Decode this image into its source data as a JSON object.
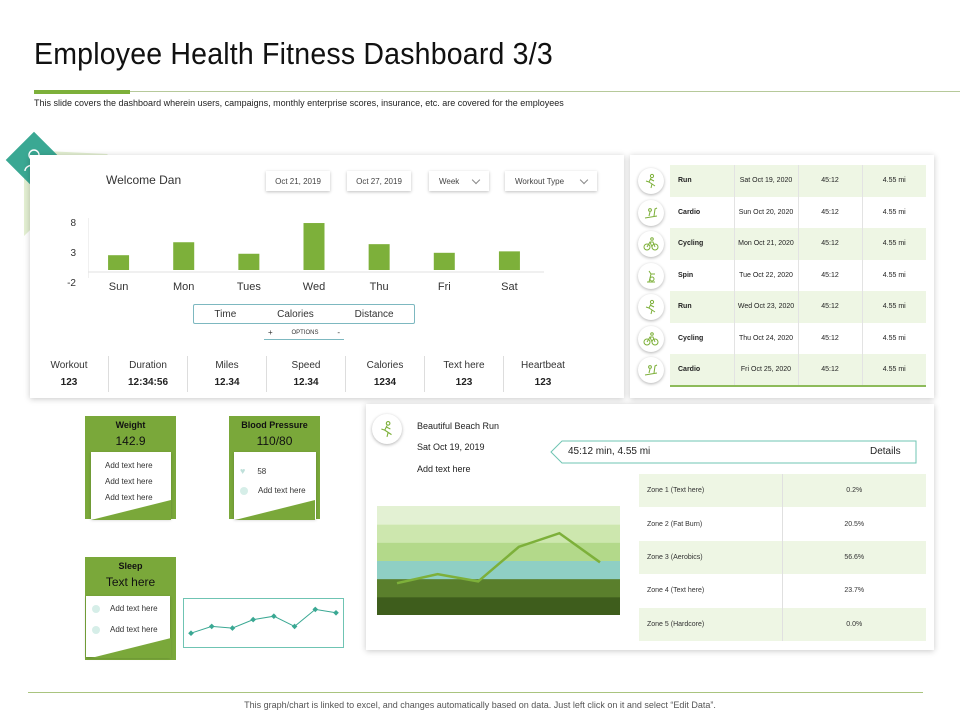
{
  "page": {
    "title": "Employee Health Fitness Dashboard 3/3",
    "subtitle": "This slide covers the dashboard wherein users, campaigns, monthly enterprise scores, insurance, etc. are covered for the employees",
    "footer": "This graph/chart is linked to excel, and changes automatically based on data. Just left click on it and select “Edit Data”."
  },
  "colors": {
    "accent": "#7db03a",
    "accent_dark": "#7aa83a",
    "teal": "#3aa893",
    "row_tint": "#eef6e4"
  },
  "welcome": {
    "greeting": "Welcome Dan",
    "date_from": "Oct 21, 2019",
    "date_to": "Oct 27, 2019",
    "period": "Week",
    "workout_type": "Workout Type"
  },
  "chart_data": [
    {
      "type": "bar",
      "categories": [
        "Sun",
        "Mon",
        "Tues",
        "Wed",
        "Thu",
        "Fri",
        "Sat"
      ],
      "values": [
        1.5,
        4.2,
        1.8,
        8.2,
        3.8,
        2.0,
        2.3
      ],
      "yticks": [
        "8",
        "3",
        "-2"
      ],
      "ylim": [
        -2,
        8
      ],
      "color": "#7db03a"
    },
    {
      "type": "line",
      "x": [
        1,
        2,
        3,
        4,
        5,
        6,
        7,
        8
      ],
      "values": [
        2,
        4,
        3.5,
        6,
        7,
        4,
        9,
        8
      ],
      "ylim": [
        0,
        10
      ],
      "color": "#3aa893"
    },
    {
      "type": "area",
      "x": [
        1,
        2,
        3,
        4,
        5,
        6
      ],
      "values": [
        3.5,
        4.5,
        3.7,
        7.5,
        9,
        5.8
      ],
      "ylim": [
        0,
        12
      ],
      "bands": [
        "#3e5d1c",
        "#5a7f2c",
        "#8fcfc4",
        "#b3d98a",
        "#cde7ae",
        "#e3f1d3"
      ],
      "color": "#7db03a"
    }
  ],
  "metric_toggle": {
    "time": "Time",
    "calories": "Calories",
    "distance": "Distance",
    "plus": "+",
    "options": "OPTIONS",
    "minus": "-"
  },
  "stats": [
    {
      "label": "Workout",
      "value": "123"
    },
    {
      "label": "Duration",
      "value": "12:34:56"
    },
    {
      "label": "Miles",
      "value": "12.34"
    },
    {
      "label": "Speed",
      "value": "12.34"
    },
    {
      "label": "Calories",
      "value": "1234"
    },
    {
      "label": "Text here",
      "value": "123"
    },
    {
      "label": "Heartbeat",
      "value": "123"
    }
  ],
  "workouts": [
    {
      "icon": "running-icon",
      "type": "Run",
      "date": "Sat Oct 19, 2020",
      "time": "45:12",
      "distance": "4.55 mi"
    },
    {
      "icon": "treadmill-icon",
      "type": "Cardio",
      "date": "Sun Oct 20, 2020",
      "time": "45:12",
      "distance": "4.55 mi"
    },
    {
      "icon": "cycling-icon",
      "type": "Cycling",
      "date": "Mon Oct 21, 2020",
      "time": "45:12",
      "distance": "4.55 mi"
    },
    {
      "icon": "spin-bike-icon",
      "type": "Spin",
      "date": "Tue Oct 22, 2020",
      "time": "45:12",
      "distance": "4.55 mi"
    },
    {
      "icon": "running-icon",
      "type": "Run",
      "date": "Wed Oct 23, 2020",
      "time": "45:12",
      "distance": "4.55 mi"
    },
    {
      "icon": "cycling-icon",
      "type": "Cycling",
      "date": "Thu Oct 24, 2020",
      "time": "45:12",
      "distance": "4.55 mi"
    },
    {
      "icon": "treadmill-icon",
      "type": "Cardio",
      "date": "Fri Oct 25, 2020",
      "time": "45:12",
      "distance": "4.55 mi"
    }
  ],
  "weight": {
    "title": "Weight",
    "value": "142.9",
    "lines": [
      "Add text here",
      "Add text here",
      "Add text here"
    ]
  },
  "blood_pressure": {
    "title": "Blood Pressure",
    "value": "110/80",
    "heart_value": "58",
    "line": "Add text here"
  },
  "sleep": {
    "title": "Sleep",
    "value": "Text here",
    "lines": [
      "Add text here",
      "Add text here"
    ]
  },
  "run": {
    "title": "Beautiful Beach Run",
    "date": "Sat Oct 19, 2019",
    "note": "Add text here",
    "summary": "45:12 min,  4.55 mi",
    "details": "Details"
  },
  "zones": [
    {
      "label": "Zone 1 (Text here)",
      "value": "0.2%"
    },
    {
      "label": "Zone 2  (Fat Burn)",
      "value": "20.5%"
    },
    {
      "label": "Zone 3 (Aerobics)",
      "value": "56.6%"
    },
    {
      "label": "Zone 4 (Text here)",
      "value": "23.7%"
    },
    {
      "label": "Zone 5  (Hardcore)",
      "value": "0.0%"
    }
  ]
}
